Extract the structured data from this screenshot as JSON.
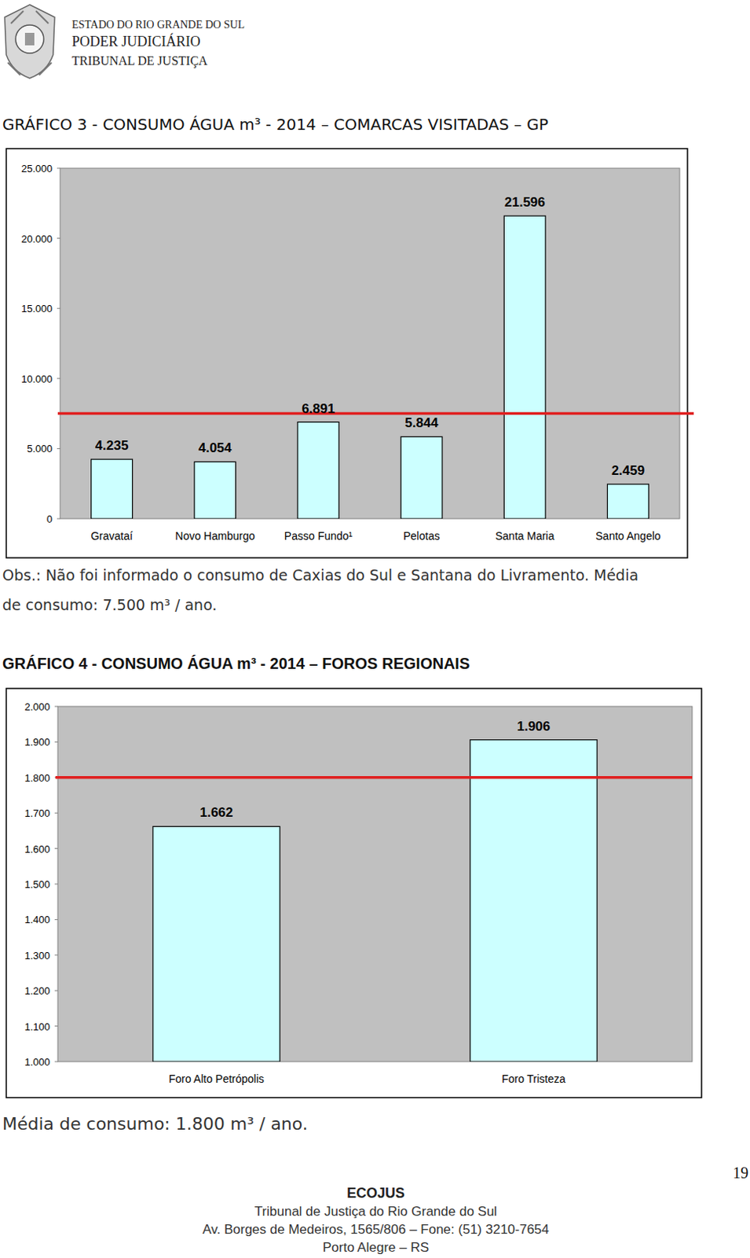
{
  "header": {
    "lines": [
      "ESTADO DO RIO GRANDE DO SUL",
      "PODER JUDICIÁRIO",
      "TRIBUNAL DE JUSTIÇA"
    ]
  },
  "chart_data": [
    {
      "type": "bar",
      "title": "GRÁFICO 3 - CONSUMO ÁGUA  m³ - 2014 – COMARCAS VISITADAS – GP",
      "categories": [
        "Gravataí",
        "Novo Hamburgo",
        "Passo Fundo¹",
        "Pelotas",
        "Santa Maria",
        "Santo Angelo"
      ],
      "values": [
        4235,
        4054,
        6891,
        5844,
        21596,
        2459
      ],
      "value_labels": [
        "4.235",
        "4.054",
        "6.891",
        "5.844",
        "21.596",
        "2.459"
      ],
      "color": "#ccffff",
      "ylim": [
        0,
        25000
      ],
      "yticks": [
        0,
        {
          "value": 5000,
          "label": "5.000"
        },
        {
          "value": 10000,
          "label": "10.000"
        },
        {
          "value": 15000,
          "label": "15.000"
        },
        {
          "value": 20000,
          "label": "20.000"
        },
        {
          "value": 25000,
          "label": "25.000"
        }
      ],
      "grid": false,
      "data_labels": true,
      "mean": 7500,
      "note": [
        "Obs.: Não foi informado o consumo de Caxias do Sul e Santana do Livramento. Média",
        "de consumo: 7.500 m³ / ano."
      ]
    },
    {
      "type": "bar",
      "title": "GRÁFICO 4 - CONSUMO ÁGUA  m³ - 2014 – FOROS REGIONAIS",
      "categories": [
        "Foro Alto Petrópolis",
        "Foro Tristeza"
      ],
      "values": [
        1662,
        1906
      ],
      "value_labels": [
        "1.662",
        "1.906"
      ],
      "color": "#ccffff",
      "ylim": [
        1000,
        2000
      ],
      "yticks": [
        {
          "value": 1000,
          "label": "1.000"
        },
        {
          "value": 1100,
          "label": "1.100"
        },
        {
          "value": 1200,
          "label": "1.200"
        },
        {
          "value": 1300,
          "label": "1.300"
        },
        {
          "value": 1400,
          "label": "1.400"
        },
        {
          "value": 1500,
          "label": "1.500"
        },
        {
          "value": 1600,
          "label": "1.600"
        },
        {
          "value": 1700,
          "label": "1.700"
        },
        {
          "value": 1800,
          "label": "1.800"
        },
        {
          "value": 1900,
          "label": "1.900"
        },
        {
          "value": 2000,
          "label": "2.000"
        }
      ],
      "grid": false,
      "data_labels": true,
      "mean": 1800,
      "note": [
        "Média de consumo: 1.800 m³ / ano."
      ]
    }
  ],
  "page_number": 19,
  "footer": {
    "title": "ECOJUS",
    "lines": [
      "Tribunal de Justiça do Rio Grande do Sul",
      "Av. Borges de Medeiros, 1565/806 – Fone: (51) 3210-7654",
      "Porto Alegre – RS"
    ]
  }
}
